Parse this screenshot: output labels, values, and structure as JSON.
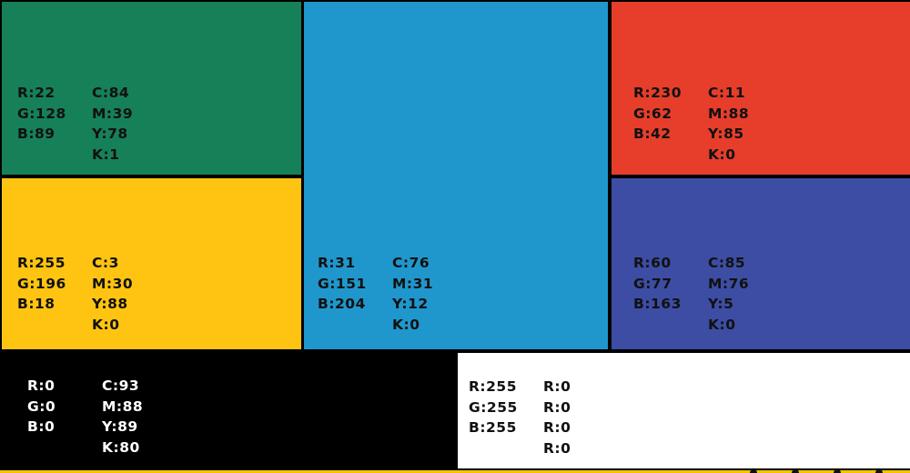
{
  "swatches": {
    "green": {
      "color": "#168059",
      "rgb": [
        "R:22",
        "G:128",
        "B:89"
      ],
      "cmyk": [
        "C:84",
        "M:39",
        "Y:78",
        "K:1"
      ]
    },
    "yellow": {
      "color": "#ffc412",
      "rgb": [
        "R:255",
        "G:196",
        "B:18"
      ],
      "cmyk": [
        "C:3",
        "M:30",
        "Y:88",
        "K:0"
      ]
    },
    "blue": {
      "color": "#1f97cc",
      "rgb": [
        "R:31",
        "G:151",
        "B:204"
      ],
      "cmyk": [
        "C:76",
        "M:31",
        "Y:12",
        "K:0"
      ]
    },
    "red": {
      "color": "#e63e2a",
      "rgb": [
        "R:230",
        "G:62",
        "B:42"
      ],
      "cmyk": [
        "C:11",
        "M:88",
        "Y:85",
        "K:0"
      ]
    },
    "indigo": {
      "color": "#3c4da3",
      "rgb": [
        "R:60",
        "G:77",
        "B:163"
      ],
      "cmyk": [
        "C:85",
        "M:76",
        "Y:5",
        "K:0"
      ]
    },
    "black": {
      "color": "#000000",
      "rgb": [
        "R:0",
        "G:0",
        "B:0"
      ],
      "cmyk": [
        "C:93",
        "M:88",
        "Y:89",
        "K:80"
      ]
    },
    "white": {
      "color": "#ffffff",
      "rgb": [
        "R:255",
        "G:255",
        "B:255"
      ],
      "cmyk": [
        "R:0",
        "R:0",
        "R:0",
        "R:0"
      ]
    }
  }
}
